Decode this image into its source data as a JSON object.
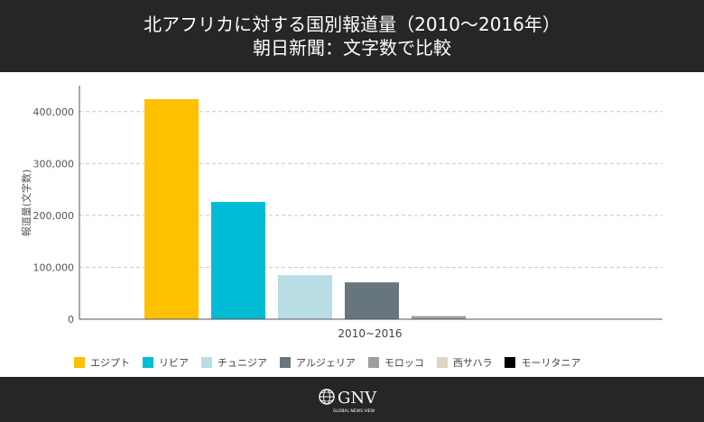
{
  "header": {
    "title_line1": "北アフリカに対する国別報道量（2010〜2016年）",
    "title_line2": "朝日新聞：文字数で比較"
  },
  "chart_data": {
    "type": "bar",
    "categories": [
      "2010~2016"
    ],
    "series": [
      {
        "name": "エジプト",
        "values": [
          424000
        ],
        "color": "#FFC000"
      },
      {
        "name": "リビア",
        "values": [
          226000
        ],
        "color": "#00BCD4"
      },
      {
        "name": "チュニジア",
        "values": [
          85000
        ],
        "color": "#B8DDE4"
      },
      {
        "name": "アルジェリア",
        "values": [
          71000
        ],
        "color": "#67757F"
      },
      {
        "name": "モロッコ",
        "values": [
          6000
        ],
        "color": "#9E9E9E"
      },
      {
        "name": "西サハラ",
        "values": [
          0
        ],
        "color": "#DDD5C3"
      },
      {
        "name": "モーリタニア",
        "values": [
          0
        ],
        "color": "#000000"
      }
    ],
    "ylabel": "報道量(文字数)",
    "xlabel": "",
    "ylim": [
      0,
      450000
    ],
    "yticks": [
      0,
      100000,
      200000,
      300000,
      400000
    ],
    "ytick_labels": [
      "0",
      "100,000",
      "200,000",
      "300,000",
      "400,000"
    ],
    "grid": true,
    "legend_position": "bottom"
  },
  "footer": {
    "logo_text": "GNV",
    "logo_subtext": "GLOBAL NEWS VIEW"
  }
}
